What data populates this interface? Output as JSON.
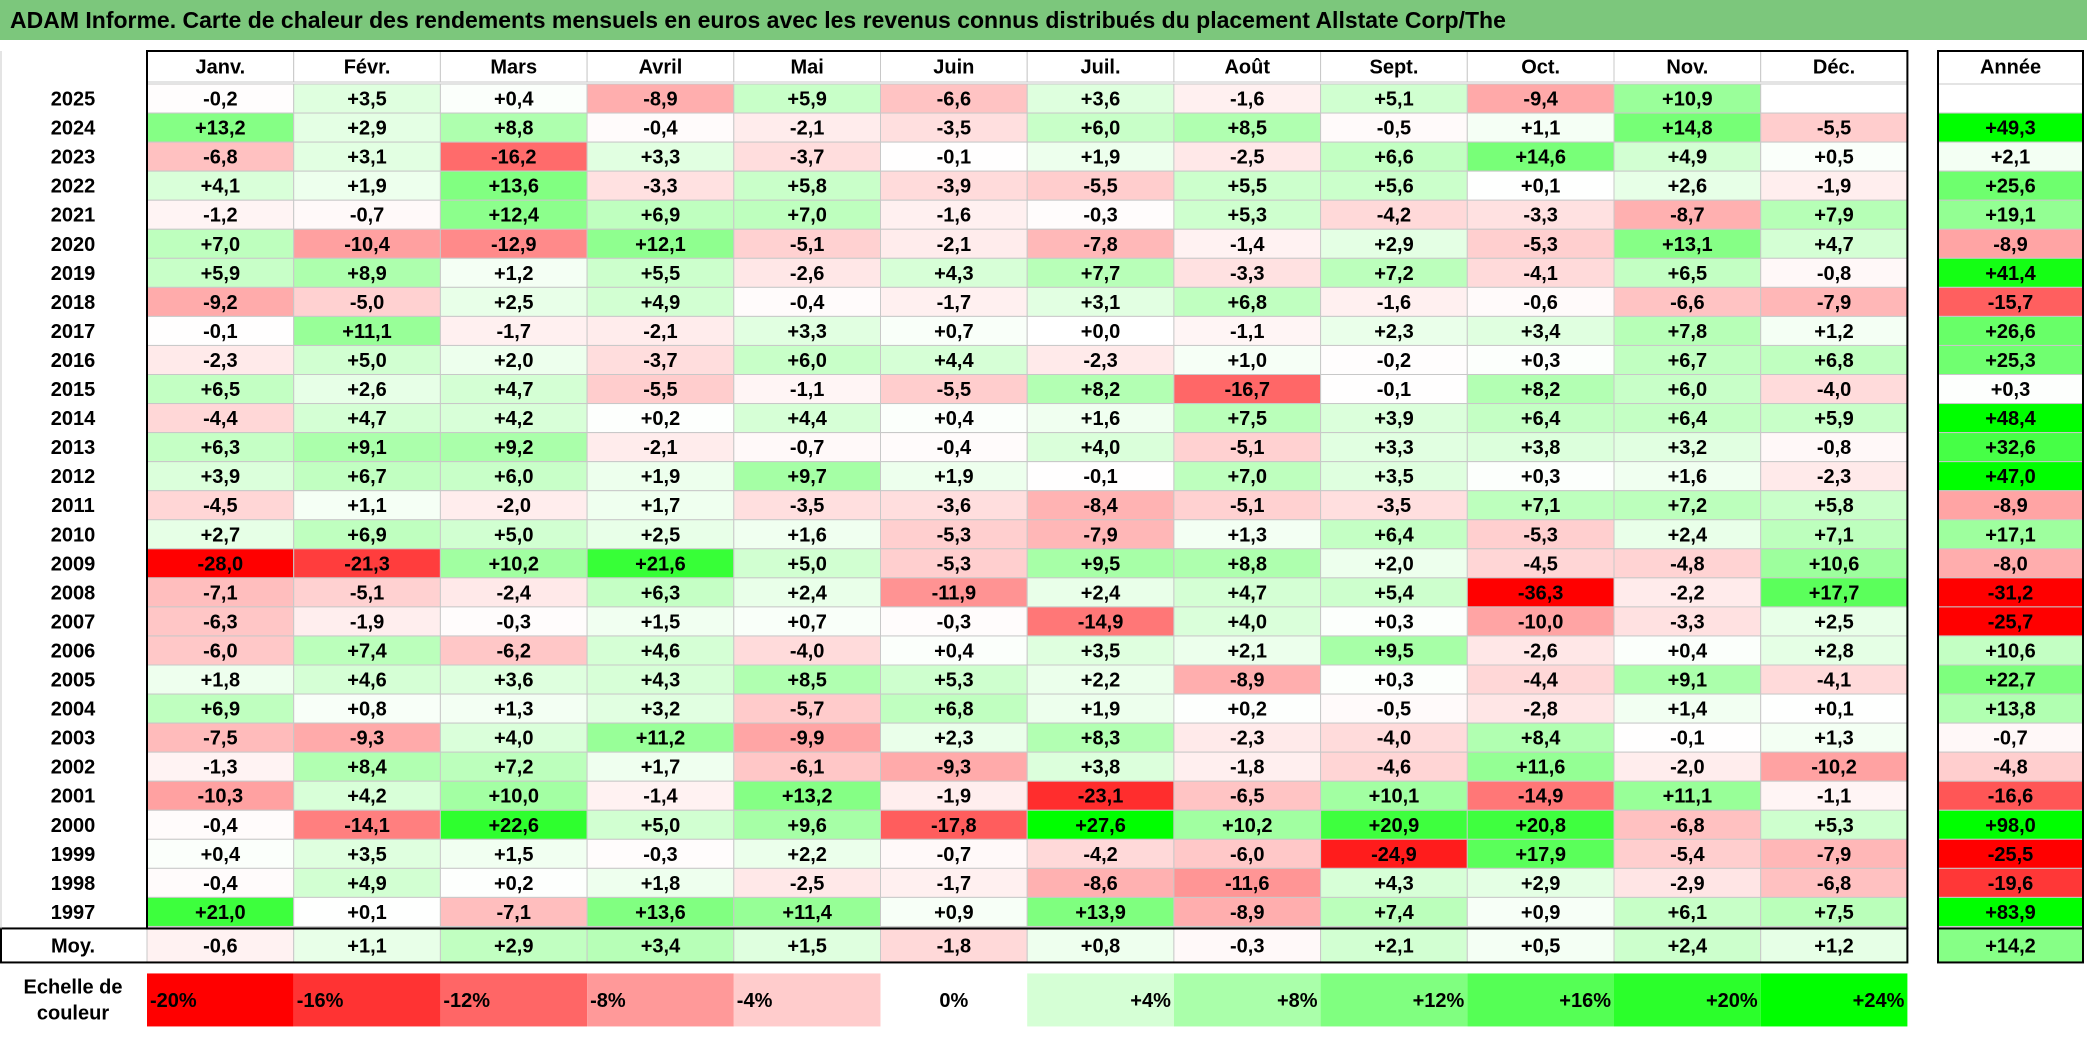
{
  "title": "ADAM Informe. Carte de chaleur des rendements mensuels en euros avec les revenus connus distribués du placement Allstate Corp/The",
  "colors": {
    "title_bg": "#7cc77c",
    "negative": "#ff0000",
    "positive": "#00ff00",
    "neutral": "#ffffff",
    "grid": "#c8c8c8",
    "frame": "#000000"
  },
  "chart_data": {
    "type": "heatmap",
    "title": "ADAM Informe. Carte de chaleur des rendements mensuels en euros avec les revenus connus distribués du placement Allstate Corp/The",
    "columns": [
      "Janv.",
      "Févr.",
      "Mars",
      "Avril",
      "Mai",
      "Juin",
      "Juil.",
      "Août",
      "Sept.",
      "Oct.",
      "Nov.",
      "Déc."
    ],
    "year_column_label": "Année",
    "rows": [
      {
        "year": "2025",
        "values": [
          "-0,2",
          "+3,5",
          "+0,4",
          "-8,9",
          "+5,9",
          "-6,6",
          "+3,6",
          "-1,6",
          "+5,1",
          "-9,4",
          "+10,9",
          ""
        ],
        "annual": ""
      },
      {
        "year": "2024",
        "values": [
          "+13,2",
          "+2,9",
          "+8,8",
          "-0,4",
          "-2,1",
          "-3,5",
          "+6,0",
          "+8,5",
          "-0,5",
          "+1,1",
          "+14,8",
          "-5,5"
        ],
        "annual": "+49,3"
      },
      {
        "year": "2023",
        "values": [
          "-6,8",
          "+3,1",
          "-16,2",
          "+3,3",
          "-3,7",
          "-0,1",
          "+1,9",
          "-2,5",
          "+6,6",
          "+14,6",
          "+4,9",
          "+0,5"
        ],
        "annual": "+2,1"
      },
      {
        "year": "2022",
        "values": [
          "+4,1",
          "+1,9",
          "+13,6",
          "-3,3",
          "+5,8",
          "-3,9",
          "-5,5",
          "+5,5",
          "+5,6",
          "+0,1",
          "+2,6",
          "-1,9"
        ],
        "annual": "+25,6"
      },
      {
        "year": "2021",
        "values": [
          "-1,2",
          "-0,7",
          "+12,4",
          "+6,9",
          "+7,0",
          "-1,6",
          "-0,3",
          "+5,3",
          "-4,2",
          "-3,3",
          "-8,7",
          "+7,9"
        ],
        "annual": "+19,1"
      },
      {
        "year": "2020",
        "values": [
          "+7,0",
          "-10,4",
          "-12,9",
          "+12,1",
          "-5,1",
          "-2,1",
          "-7,8",
          "-1,4",
          "+2,9",
          "-5,3",
          "+13,1",
          "+4,7"
        ],
        "annual": "-8,9"
      },
      {
        "year": "2019",
        "values": [
          "+5,9",
          "+8,9",
          "+1,2",
          "+5,5",
          "-2,6",
          "+4,3",
          "+7,7",
          "-3,3",
          "+7,2",
          "-4,1",
          "+6,5",
          "-0,8"
        ],
        "annual": "+41,4"
      },
      {
        "year": "2018",
        "values": [
          "-9,2",
          "-5,0",
          "+2,5",
          "+4,9",
          "-0,4",
          "-1,7",
          "+3,1",
          "+6,8",
          "-1,6",
          "-0,6",
          "-6,6",
          "-7,9"
        ],
        "annual": "-15,7"
      },
      {
        "year": "2017",
        "values": [
          "-0,1",
          "+11,1",
          "-1,7",
          "-2,1",
          "+3,3",
          "+0,7",
          "+0,0",
          "-1,1",
          "+2,3",
          "+3,4",
          "+7,8",
          "+1,2"
        ],
        "annual": "+26,6"
      },
      {
        "year": "2016",
        "values": [
          "-2,3",
          "+5,0",
          "+2,0",
          "-3,7",
          "+6,0",
          "+4,4",
          "-2,3",
          "+1,0",
          "-0,2",
          "+0,3",
          "+6,7",
          "+6,8"
        ],
        "annual": "+25,3"
      },
      {
        "year": "2015",
        "values": [
          "+6,5",
          "+2,6",
          "+4,7",
          "-5,5",
          "-1,1",
          "-5,5",
          "+8,2",
          "-16,7",
          "-0,1",
          "+8,2",
          "+6,0",
          "-4,0"
        ],
        "annual": "+0,3"
      },
      {
        "year": "2014",
        "values": [
          "-4,4",
          "+4,7",
          "+4,2",
          "+0,2",
          "+4,4",
          "+0,4",
          "+1,6",
          "+7,5",
          "+3,9",
          "+6,4",
          "+6,4",
          "+5,9"
        ],
        "annual": "+48,4"
      },
      {
        "year": "2013",
        "values": [
          "+6,3",
          "+9,1",
          "+9,2",
          "-2,1",
          "-0,7",
          "-0,4",
          "+4,0",
          "-5,1",
          "+3,3",
          "+3,8",
          "+3,2",
          "-0,8"
        ],
        "annual": "+32,6"
      },
      {
        "year": "2012",
        "values": [
          "+3,9",
          "+6,7",
          "+6,0",
          "+1,9",
          "+9,7",
          "+1,9",
          "-0,1",
          "+7,0",
          "+3,5",
          "+0,3",
          "+1,6",
          "-2,3"
        ],
        "annual": "+47,0"
      },
      {
        "year": "2011",
        "values": [
          "-4,5",
          "+1,1",
          "-2,0",
          "+1,7",
          "-3,5",
          "-3,6",
          "-8,4",
          "-5,1",
          "-3,5",
          "+7,1",
          "+7,2",
          "+5,8"
        ],
        "annual": "-8,9"
      },
      {
        "year": "2010",
        "values": [
          "+2,7",
          "+6,9",
          "+5,0",
          "+2,5",
          "+1,6",
          "-5,3",
          "-7,9",
          "+1,3",
          "+6,4",
          "-5,3",
          "+2,4",
          "+7,1"
        ],
        "annual": "+17,1"
      },
      {
        "year": "2009",
        "values": [
          "-28,0",
          "-21,3",
          "+10,2",
          "+21,6",
          "+5,0",
          "-5,3",
          "+9,5",
          "+8,8",
          "+2,0",
          "-4,5",
          "-4,8",
          "+10,6"
        ],
        "annual": "-8,0"
      },
      {
        "year": "2008",
        "values": [
          "-7,1",
          "-5,1",
          "-2,4",
          "+6,3",
          "+2,4",
          "-11,9",
          "+2,4",
          "+4,7",
          "+5,4",
          "-36,3",
          "-2,2",
          "+17,7"
        ],
        "annual": "-31,2"
      },
      {
        "year": "2007",
        "values": [
          "-6,3",
          "-1,9",
          "-0,3",
          "+1,5",
          "+0,7",
          "-0,3",
          "-14,9",
          "+4,0",
          "+0,3",
          "-10,0",
          "-3,3",
          "+2,5"
        ],
        "annual": "-25,7"
      },
      {
        "year": "2006",
        "values": [
          "-6,0",
          "+7,4",
          "-6,2",
          "+4,6",
          "-4,0",
          "+0,4",
          "+3,5",
          "+2,1",
          "+9,5",
          "-2,6",
          "+0,4",
          "+2,8"
        ],
        "annual": "+10,6"
      },
      {
        "year": "2005",
        "values": [
          "+1,8",
          "+4,6",
          "+3,6",
          "+4,3",
          "+8,5",
          "+5,3",
          "+2,2",
          "-8,9",
          "+0,3",
          "-4,4",
          "+9,1",
          "-4,1"
        ],
        "annual": "+22,7"
      },
      {
        "year": "2004",
        "values": [
          "+6,9",
          "+0,8",
          "+1,3",
          "+3,2",
          "-5,7",
          "+6,8",
          "+1,9",
          "+0,2",
          "-0,5",
          "-2,8",
          "+1,4",
          "+0,1"
        ],
        "annual": "+13,8"
      },
      {
        "year": "2003",
        "values": [
          "-7,5",
          "-9,3",
          "+4,0",
          "+11,2",
          "-9,9",
          "+2,3",
          "+8,3",
          "-2,3",
          "-4,0",
          "+8,4",
          "-0,1",
          "+1,3"
        ],
        "annual": "-0,7"
      },
      {
        "year": "2002",
        "values": [
          "-1,3",
          "+8,4",
          "+7,2",
          "+1,7",
          "-6,1",
          "-9,3",
          "+3,8",
          "-1,8",
          "-4,6",
          "+11,6",
          "-2,0",
          "-10,2"
        ],
        "annual": "-4,8"
      },
      {
        "year": "2001",
        "values": [
          "-10,3",
          "+4,2",
          "+10,0",
          "-1,4",
          "+13,2",
          "-1,9",
          "-23,1",
          "-6,5",
          "+10,1",
          "-14,9",
          "+11,1",
          "-1,1"
        ],
        "annual": "-16,6"
      },
      {
        "year": "2000",
        "values": [
          "-0,4",
          "-14,1",
          "+22,6",
          "+5,0",
          "+9,6",
          "-17,8",
          "+27,6",
          "+10,2",
          "+20,9",
          "+20,8",
          "-6,8",
          "+5,3"
        ],
        "annual": "+98,0"
      },
      {
        "year": "1999",
        "values": [
          "+0,4",
          "+3,5",
          "+1,5",
          "-0,3",
          "+2,2",
          "-0,7",
          "-4,2",
          "-6,0",
          "-24,9",
          "+17,9",
          "-5,4",
          "-7,9"
        ],
        "annual": "-25,5"
      },
      {
        "year": "1998",
        "values": [
          "-0,4",
          "+4,9",
          "+0,2",
          "+1,8",
          "-2,5",
          "-1,7",
          "-8,6",
          "-11,6",
          "+4,3",
          "+2,9",
          "-2,9",
          "-6,8"
        ],
        "annual": "-19,6"
      },
      {
        "year": "1997",
        "values": [
          "+21,0",
          "+0,1",
          "-7,1",
          "+13,6",
          "+11,4",
          "+0,9",
          "+13,9",
          "-8,9",
          "+7,4",
          "+0,9",
          "+6,1",
          "+7,5"
        ],
        "annual": "+83,9"
      }
    ],
    "average": {
      "label": "Moy.",
      "values": [
        "-0,6",
        "+1,1",
        "+2,9",
        "+3,4",
        "+1,5",
        "-1,8",
        "+0,8",
        "-0,3",
        "+2,1",
        "+0,5",
        "+2,4",
        "+1,2"
      ],
      "annual": "+14,2"
    },
    "scale": {
      "label_line1": "Echelle de",
      "label_line2": "couleur",
      "steps": [
        "-20%",
        "-16%",
        "-12%",
        "-8%",
        "-4%",
        "0%",
        "+4%",
        "+8%",
        "+12%",
        "+16%",
        "+20%",
        "+24%"
      ]
    }
  }
}
